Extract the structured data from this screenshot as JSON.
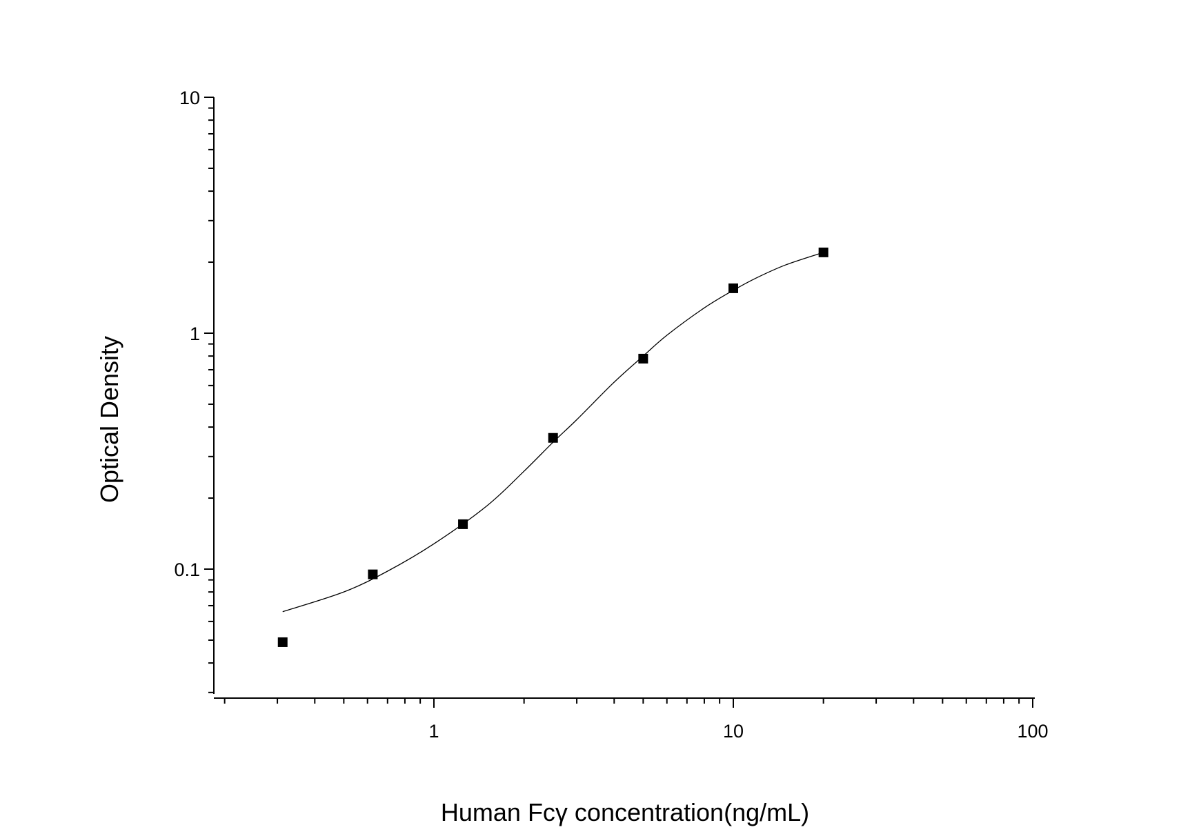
{
  "chart_data": {
    "type": "scatter",
    "xlabel": "Human Fcγ   concentration(ng/mL)",
    "ylabel": "Optical Density",
    "x_scale": "log",
    "y_scale": "log",
    "xlim": [
      0.2,
      100
    ],
    "ylim": [
      0.03,
      10
    ],
    "x_tick_labels": [
      "1",
      "10",
      "100"
    ],
    "y_tick_labels": [
      "0.1",
      "1",
      "10"
    ],
    "grid": false,
    "series": [
      {
        "marker": "square",
        "x": [
          0.3125,
          0.625,
          1.25,
          2.5,
          5,
          10,
          20
        ],
        "y": [
          0.049,
          0.095,
          0.155,
          0.36,
          0.78,
          1.55,
          2.2
        ]
      }
    ],
    "fit_curve": {
      "x": [
        0.3125,
        0.5,
        0.7,
        1.0,
        1.5,
        2.0,
        2.5,
        3.0,
        4.0,
        5.0,
        6.0,
        8.0,
        10.0,
        12.0,
        15.0,
        20.0
      ],
      "y": [
        0.066,
        0.08,
        0.098,
        0.128,
        0.185,
        0.26,
        0.345,
        0.43,
        0.62,
        0.8,
        0.98,
        1.28,
        1.52,
        1.72,
        1.95,
        2.2
      ]
    },
    "colors": {
      "marker": "#000000",
      "curve": "#000000",
      "axes": "#000000",
      "background": "#ffffff"
    }
  }
}
